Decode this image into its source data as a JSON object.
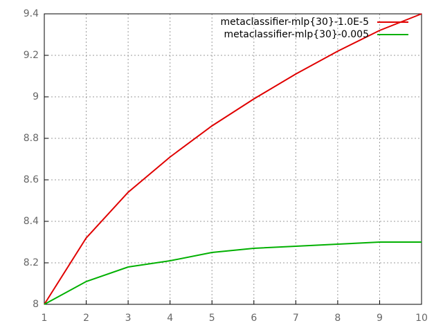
{
  "chart_data": {
    "type": "line",
    "x": [
      1,
      2,
      3,
      4,
      5,
      6,
      7,
      8,
      9,
      10
    ],
    "series": [
      {
        "name": "metaclassifier-mlp{30}-1.0E-5",
        "color": "#e00000",
        "values": [
          8.0,
          8.32,
          8.54,
          8.71,
          8.86,
          8.99,
          9.11,
          9.22,
          9.32,
          9.4
        ]
      },
      {
        "name": "metaclassifier-mlp{30}-0.005",
        "color": "#00b000",
        "values": [
          8.0,
          8.11,
          8.18,
          8.21,
          8.25,
          8.27,
          8.28,
          8.29,
          8.3,
          8.3
        ]
      }
    ],
    "xlim": [
      1,
      10
    ],
    "xticks": [
      1,
      2,
      3,
      4,
      5,
      6,
      7,
      8,
      9,
      10
    ],
    "ylim": [
      8,
      9.4
    ],
    "yticks": [
      8,
      8.2,
      8.4,
      8.6,
      8.8,
      9,
      9.2,
      9.4
    ],
    "grid": true,
    "legend": "top-right"
  }
}
